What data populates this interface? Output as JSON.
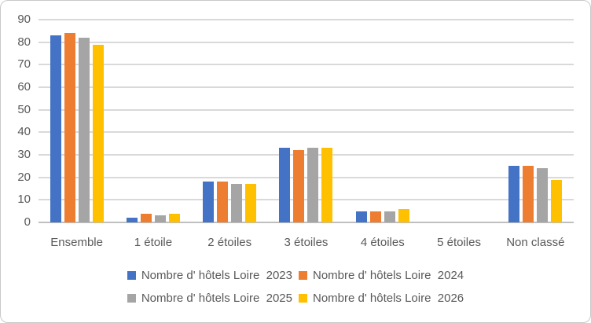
{
  "chart_data": {
    "type": "bar",
    "title": "",
    "categories": [
      "Ensemble",
      "1 étoile",
      "2 étoiles",
      "3 étoiles",
      "4 étoiles",
      "5 étoiles",
      "Non classé"
    ],
    "series": [
      {
        "name": "Nombre d' hôtels Loire  2023",
        "year": "2023",
        "color": "#4472C4",
        "values": [
          83,
          2,
          18,
          33,
          5,
          0,
          25
        ]
      },
      {
        "name": "Nombre d' hôtels Loire  2024",
        "year": "2024",
        "color": "#ED7D31",
        "values": [
          84,
          4,
          18,
          32,
          5,
          0,
          25
        ]
      },
      {
        "name": "Nombre d' hôtels Loire  2025",
        "year": "2025",
        "color": "#A5A5A5",
        "values": [
          82,
          3,
          17,
          33,
          5,
          0,
          24
        ]
      },
      {
        "name": "Nombre d' hôtels Loire  2026",
        "year": "2026",
        "color": "#FFC000",
        "values": [
          79,
          4,
          17,
          33,
          6,
          0,
          19
        ]
      }
    ],
    "xlabel": "",
    "ylabel": "",
    "ylim": [
      0,
      90
    ],
    "yticks": [
      0,
      10,
      20,
      30,
      40,
      50,
      60,
      70,
      80,
      90
    ],
    "grid": true,
    "legend_position": "bottom",
    "legend_rows": [
      [
        0,
        1
      ],
      [
        2,
        3
      ]
    ]
  },
  "colors": {
    "gridline": "#D9D9D9",
    "axis_line": "#BFBFBF",
    "text": "#595959",
    "background": "#FFFFFF",
    "frame_border": "#C9C9C9"
  }
}
